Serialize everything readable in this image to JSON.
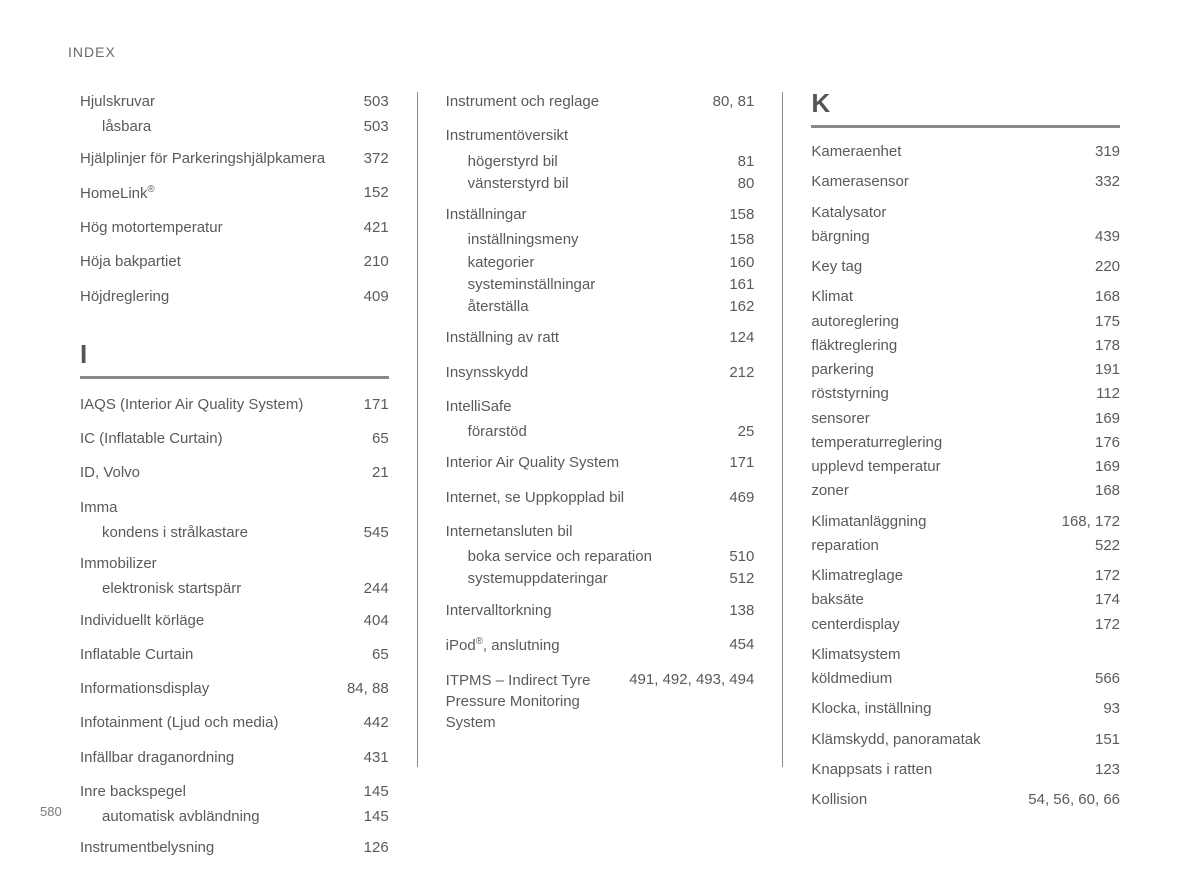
{
  "header": "INDEX",
  "page_number": "580",
  "section_letters": {
    "I": "I",
    "K": "K"
  },
  "col1": {
    "pre": [
      {
        "term": "Hjulskruvar",
        "pages": "503",
        "sub": false
      },
      {
        "term": "låsbara",
        "pages": "503",
        "sub": true
      },
      {
        "term": "Hjälplinjer för Parkeringshjälpkamera",
        "pages": "372",
        "sub": false
      },
      {
        "term": "HomeLink®",
        "pages": "152",
        "sub": false,
        "reg": true
      },
      {
        "term": "Hög motortemperatur",
        "pages": "421",
        "sub": false
      },
      {
        "term": "Höja bakpartiet",
        "pages": "210",
        "sub": false
      },
      {
        "term": "Höjdreglering",
        "pages": "409",
        "sub": false
      }
    ],
    "I": [
      {
        "term": "IAQS (Interior Air Quality System)",
        "pages": "171",
        "sub": false
      },
      {
        "term": "IC (Inflatable Curtain)",
        "pages": "65",
        "sub": false
      },
      {
        "term": "ID, Volvo",
        "pages": "21",
        "sub": false
      },
      {
        "term": "Imma",
        "pages": "",
        "sub": false,
        "header": true
      },
      {
        "term": "kondens i strålkastare",
        "pages": "545",
        "sub": true
      },
      {
        "term": "Immobilizer",
        "pages": "",
        "sub": false,
        "header": true
      },
      {
        "term": "elektronisk startspärr",
        "pages": "244",
        "sub": true
      },
      {
        "term": "Individuellt körläge",
        "pages": "404",
        "sub": false
      },
      {
        "term": "Inflatable Curtain",
        "pages": "65",
        "sub": false
      },
      {
        "term": "Informationsdisplay",
        "pages": "84, 88",
        "sub": false
      },
      {
        "term": "Infotainment (Ljud och media)",
        "pages": "442",
        "sub": false
      },
      {
        "term": "Infällbar draganordning",
        "pages": "431",
        "sub": false
      },
      {
        "term": "Inre backspegel",
        "pages": "145",
        "sub": false
      },
      {
        "term": "automatisk avbländning",
        "pages": "145",
        "sub": true
      },
      {
        "term": "Instrumentbelysning",
        "pages": "126",
        "sub": false
      }
    ]
  },
  "col2": {
    "items": [
      {
        "term": "Instrument och reglage",
        "pages": "80, 81",
        "sub": false
      },
      {
        "term": "Instrumentöversikt",
        "pages": "",
        "sub": false,
        "header": true
      },
      {
        "term": "högerstyrd bil",
        "pages": "81",
        "sub": true
      },
      {
        "term": "vänsterstyrd bil",
        "pages": "80",
        "sub": true
      },
      {
        "term": "Inställningar",
        "pages": "158",
        "sub": false
      },
      {
        "term": "inställningsmeny",
        "pages": "158",
        "sub": true
      },
      {
        "term": "kategorier",
        "pages": "160",
        "sub": true
      },
      {
        "term": "systeminställningar",
        "pages": "161",
        "sub": true
      },
      {
        "term": "återställa",
        "pages": "162",
        "sub": true
      },
      {
        "term": "Inställning av ratt",
        "pages": "124",
        "sub": false
      },
      {
        "term": "Insynsskydd",
        "pages": "212",
        "sub": false
      },
      {
        "term": "IntelliSafe",
        "pages": "",
        "sub": false,
        "header": true
      },
      {
        "term": "förarstöd",
        "pages": "25",
        "sub": true
      },
      {
        "term": "Interior Air Quality System",
        "pages": "171",
        "sub": false
      },
      {
        "term": "Internet, se Uppkopplad bil",
        "pages": "469",
        "sub": false
      },
      {
        "term": "Internetansluten bil",
        "pages": "",
        "sub": false,
        "header": true
      },
      {
        "term": "boka service och reparation",
        "pages": "510",
        "sub": true
      },
      {
        "term": "systemuppdateringar",
        "pages": "512",
        "sub": true
      },
      {
        "term": "Intervalltorkning",
        "pages": "138",
        "sub": false
      },
      {
        "term": "iPod®, anslutning",
        "pages": "454",
        "sub": false,
        "reg": true
      },
      {
        "term": "ITPMS – Indirect Tyre Pressure Monitoring System",
        "pages": "491, 492, 493, 494",
        "sub": false,
        "multi": true
      }
    ]
  },
  "col3": {
    "K": [
      {
        "term": "Kameraenhet",
        "pages": "319",
        "sub": false
      },
      {
        "term": "Kamerasensor",
        "pages": "332",
        "sub": false
      },
      {
        "term": "Katalysator",
        "pages": "",
        "sub": false,
        "header": true
      },
      {
        "term": "bärgning",
        "pages": "439",
        "sub": true
      },
      {
        "term": "Key tag",
        "pages": "220",
        "sub": false
      },
      {
        "term": "Klimat",
        "pages": "168",
        "sub": false
      },
      {
        "term": "autoreglering",
        "pages": "175",
        "sub": true
      },
      {
        "term": "fläktreglering",
        "pages": "178",
        "sub": true
      },
      {
        "term": "parkering",
        "pages": "191",
        "sub": true
      },
      {
        "term": "röststyrning",
        "pages": "112",
        "sub": true
      },
      {
        "term": "sensorer",
        "pages": "169",
        "sub": true
      },
      {
        "term": "temperaturreglering",
        "pages": "176",
        "sub": true
      },
      {
        "term": "upplevd temperatur",
        "pages": "169",
        "sub": true
      },
      {
        "term": "zoner",
        "pages": "168",
        "sub": true
      },
      {
        "term": "Klimatanläggning",
        "pages": "168, 172",
        "sub": false
      },
      {
        "term": "reparation",
        "pages": "522",
        "sub": true
      },
      {
        "term": "Klimatreglage",
        "pages": "172",
        "sub": false
      },
      {
        "term": "baksäte",
        "pages": "174",
        "sub": true
      },
      {
        "term": "centerdisplay",
        "pages": "172",
        "sub": true
      },
      {
        "term": "Klimatsystem",
        "pages": "",
        "sub": false,
        "header": true
      },
      {
        "term": "köldmedium",
        "pages": "566",
        "sub": true
      },
      {
        "term": "Klocka, inställning",
        "pages": "93",
        "sub": false
      },
      {
        "term": "Klämskydd, panoramatak",
        "pages": "151",
        "sub": false
      },
      {
        "term": "Knappsats i ratten",
        "pages": "123",
        "sub": false
      },
      {
        "term": "Kollision",
        "pages": "54, 56, 60, 66",
        "sub": false
      }
    ]
  },
  "style": {
    "text_color": "#5a5a5a",
    "rule_color": "#888888",
    "background": "#ffffff",
    "font_size_body": 15,
    "font_size_header": 14,
    "font_size_letter": 26,
    "font_size_page_number": 13
  }
}
